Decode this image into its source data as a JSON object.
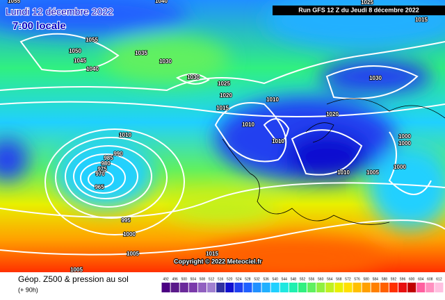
{
  "header": {
    "date": "Lundi 12 décembre 2022",
    "time": "7:00 locale",
    "run": "Run GFS 12 Z du Jeudi 8 décembre 2022",
    "copyright": "Copyright © 2022 Meteociel.fr"
  },
  "footer": {
    "title": "Géop. Z500 & pression au sol",
    "lead": "(+ 90h)"
  },
  "legend": {
    "labels": [
      492,
      496,
      500,
      504,
      508,
      512,
      516,
      520,
      524,
      528,
      532,
      536,
      540,
      544,
      548,
      552,
      556,
      560,
      564,
      568,
      572,
      576,
      580,
      584,
      588,
      592,
      596,
      600,
      604,
      608,
      612
    ],
    "colors": [
      "#4b0082",
      "#5a1a8a",
      "#6a2a9a",
      "#7a3aaa",
      "#9060c0",
      "#a080d0",
      "#3030a0",
      "#1010d0",
      "#2040f0",
      "#2060ff",
      "#2090ff",
      "#20b0ff",
      "#20d0ff",
      "#20e8e0",
      "#20f0b0",
      "#30f080",
      "#60f060",
      "#90f040",
      "#c0f020",
      "#e8f000",
      "#ffe000",
      "#ffc000",
      "#ffa000",
      "#ff8000",
      "#ff6000",
      "#ff3000",
      "#e81010",
      "#c00000",
      "#ff60a0",
      "#ff90c0",
      "#ffc0e0"
    ]
  },
  "isobar_labels": [
    1055,
    1040,
    1025,
    1015,
    1055,
    1050,
    1045,
    1040,
    1035,
    1030,
    1030,
    1025,
    1020,
    1015,
    1010,
    1010,
    1010,
    1030,
    1020,
    1010,
    990,
    985,
    980,
    975,
    970,
    965,
    995,
    1000,
    1005,
    1005,
    1015,
    1010,
    1005,
    1000,
    1000,
    1000
  ]
}
